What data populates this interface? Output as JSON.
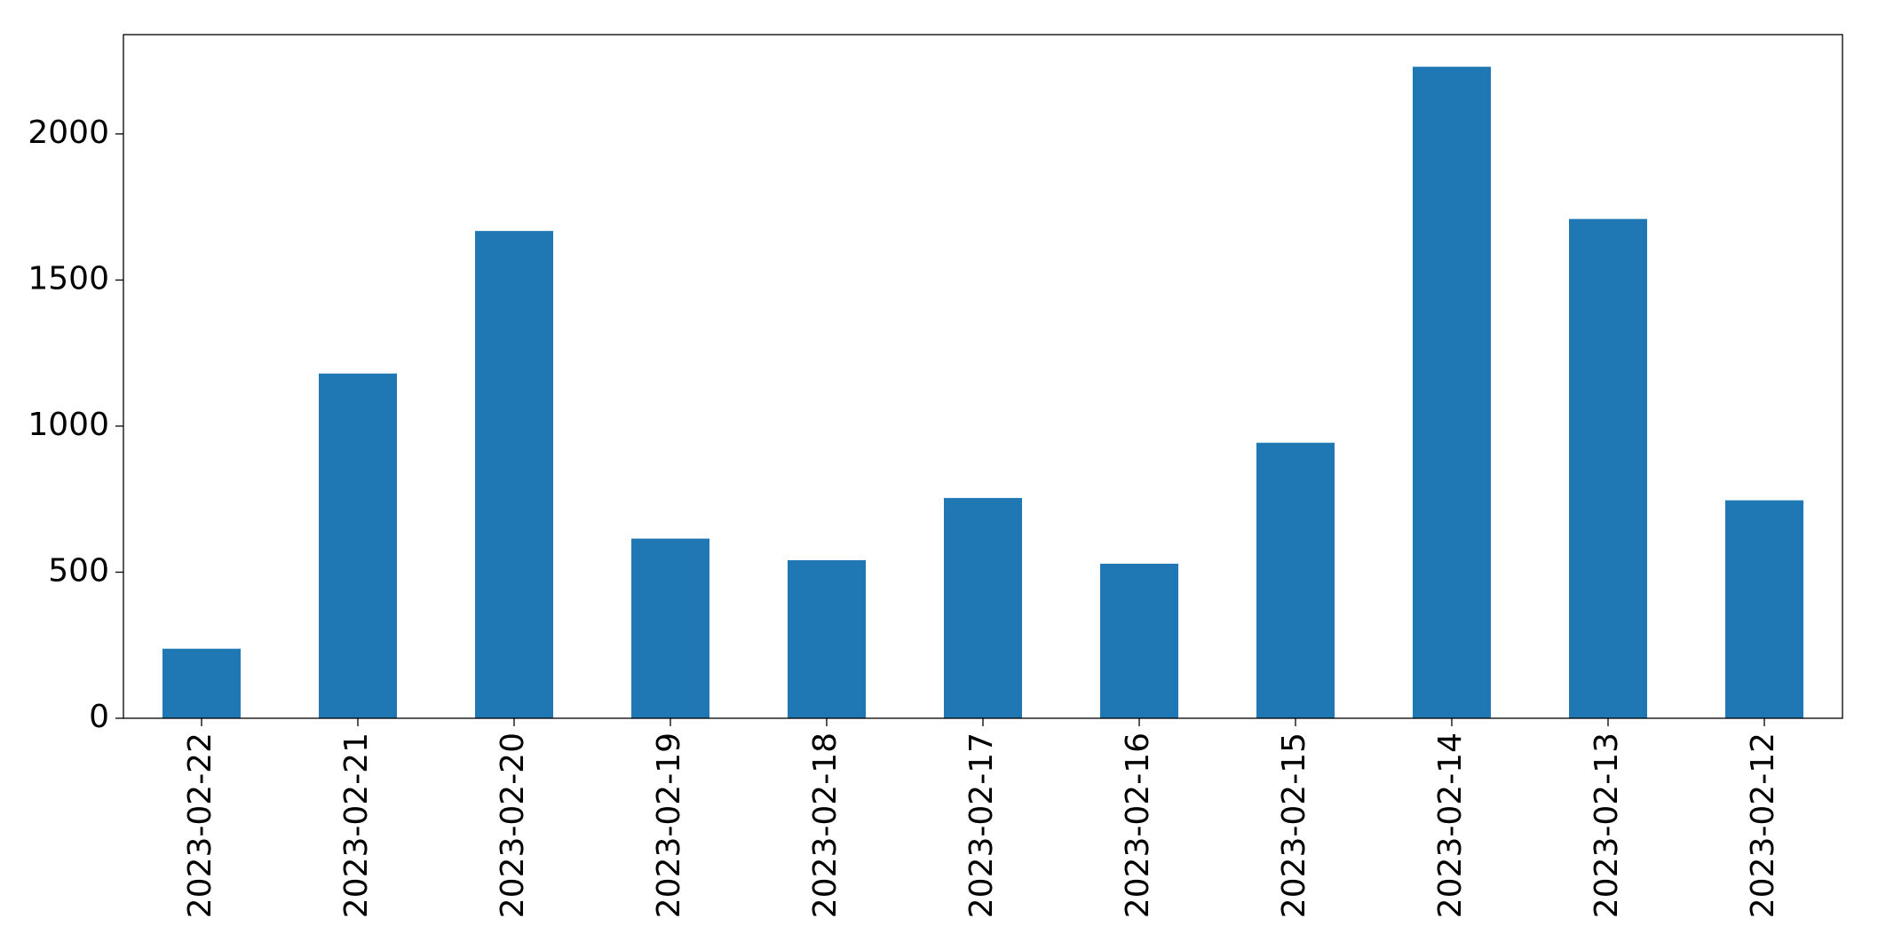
{
  "chart_data": {
    "type": "bar",
    "categories": [
      "2023-02-22",
      "2023-02-21",
      "2023-02-20",
      "2023-02-19",
      "2023-02-18",
      "2023-02-17",
      "2023-02-16",
      "2023-02-15",
      "2023-02-14",
      "2023-02-13",
      "2023-02-12"
    ],
    "values": [
      238,
      1180,
      1668,
      615,
      541,
      754,
      529,
      943,
      2230,
      1709,
      746
    ],
    "color": "#1f77b4",
    "ylim": [
      0,
      2340
    ],
    "yticks": [
      0,
      500,
      1000,
      1500,
      2000
    ],
    "grid": false
  }
}
